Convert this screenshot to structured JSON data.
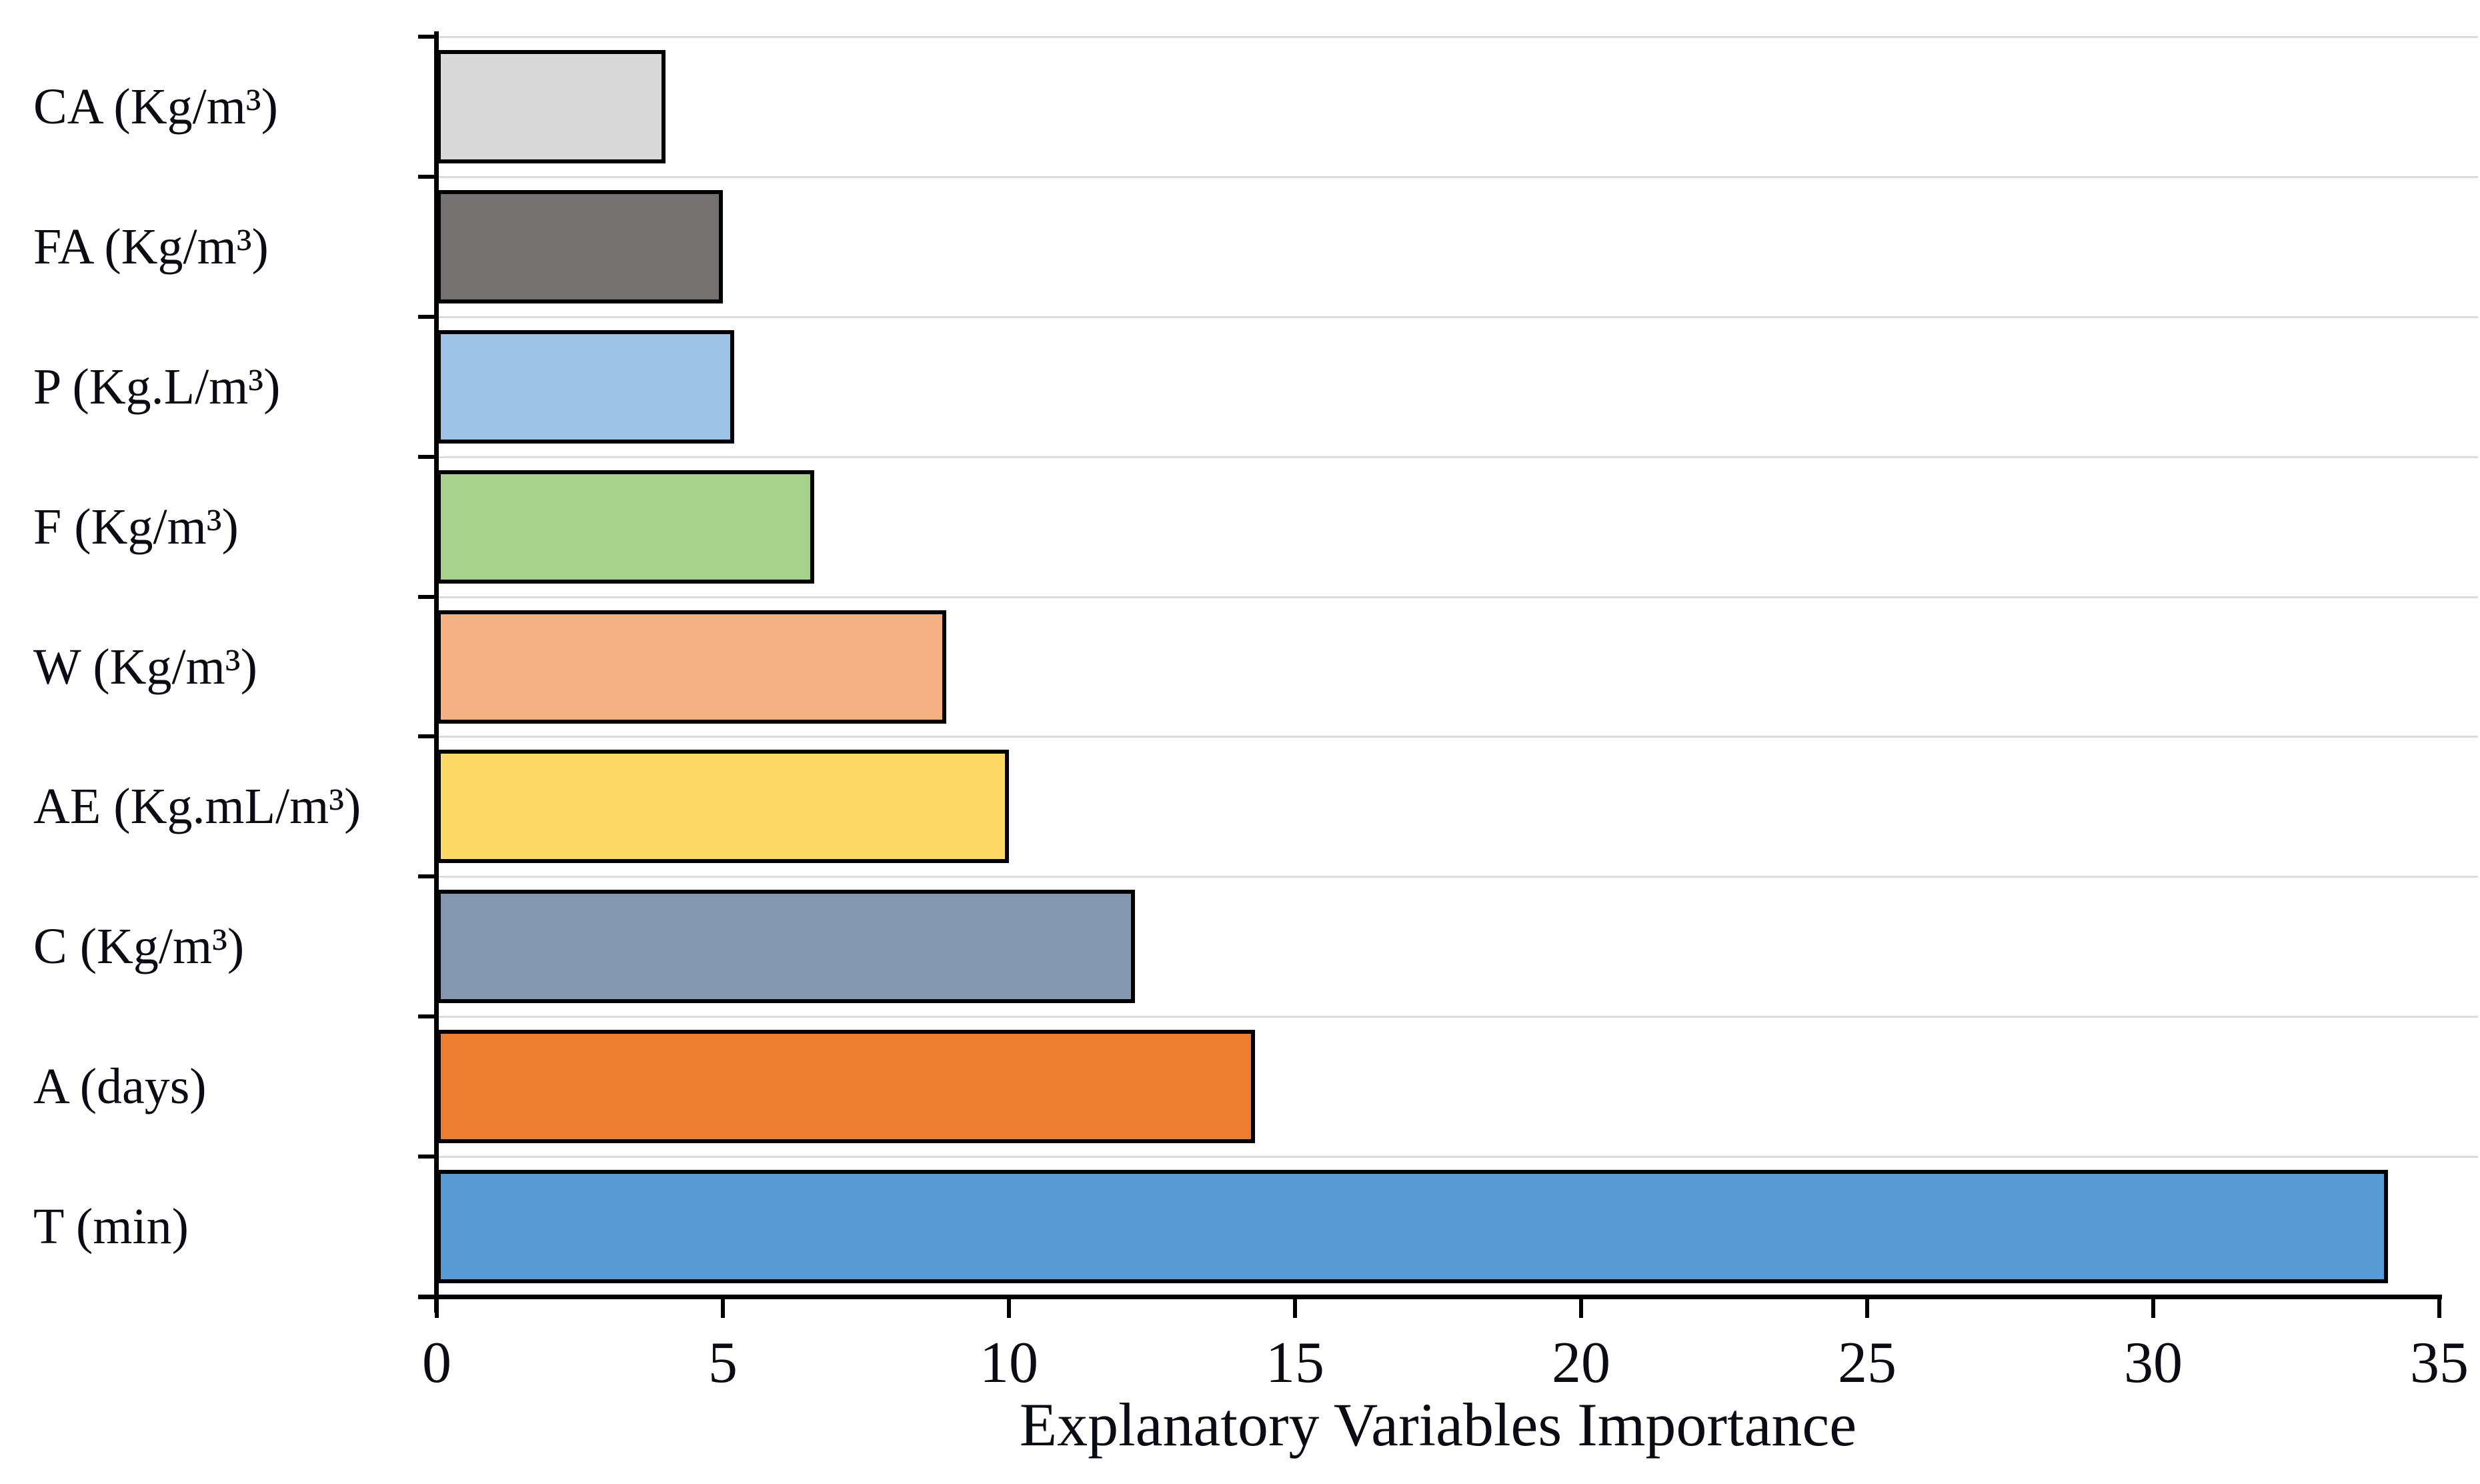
{
  "chart_data": {
    "type": "bar",
    "orientation": "horizontal",
    "title": "",
    "xlabel": "Explanatory Variables Importance",
    "ylabel": "",
    "xlim": [
      0,
      35
    ],
    "x_ticks": [
      0,
      5,
      10,
      15,
      20,
      25,
      30,
      35
    ],
    "grid": "category-boundary-lines-horizontal",
    "legend": "none",
    "categories": [
      "CA (Kg/m³)",
      "FA (Kg/m³)",
      "P (Kg.L/m³)",
      "F (Kg/m³)",
      "W (Kg/m³)",
      "AE (Kg.mL/m³)",
      "C (Kg/m³)",
      "A (days)",
      "T (min)"
    ],
    "values": [
      4.0,
      5.0,
      5.2,
      6.6,
      8.9,
      10.0,
      12.2,
      14.3,
      34.1
    ],
    "bar_colors": [
      "#d9d9d9",
      "#767171",
      "#9dc3e6",
      "#a9d18e",
      "#f4b183",
      "#ffd966",
      "#8497b0",
      "#ed7d31",
      "#5b9bd5"
    ],
    "bar_border_color": "#000000",
    "axis_color": "#000000",
    "gridline_color": "#dcdcdc"
  }
}
